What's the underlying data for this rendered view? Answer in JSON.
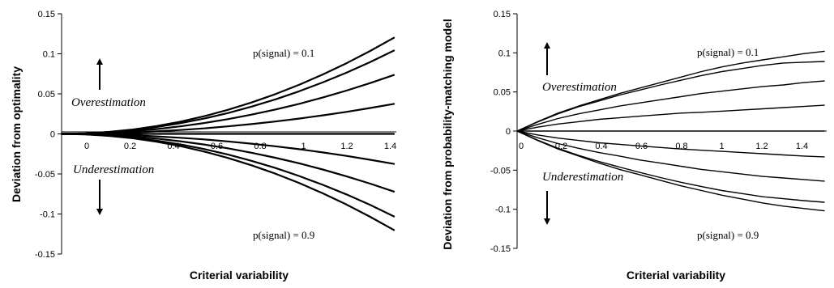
{
  "chart_data": [
    {
      "type": "line",
      "title": "",
      "xlabel": "Criterial variability",
      "ylabel": "Deviation from optimality",
      "xlim": [
        0,
        1.4
      ],
      "ylim": [
        -0.15,
        0.15
      ],
      "x_ticks": [
        "0",
        "0.2",
        "0.4",
        "0.6",
        "0.8",
        "1",
        "1.2",
        "1.4"
      ],
      "y_ticks": [
        "0.15",
        "0.1",
        "0.05",
        "0",
        "-0.05",
        "-0.1",
        "-0.15"
      ],
      "grid": false,
      "annotations": {
        "over": "Overestimation",
        "under": "Underestimation",
        "top_series": "p(signal) = 0.1",
        "bottom_series": "p(signal) = 0.9"
      },
      "x": [
        0,
        0.1,
        0.2,
        0.3,
        0.4,
        0.5,
        0.6,
        0.7,
        0.8,
        0.9,
        1.0,
        1.1,
        1.2,
        1.3,
        1.4
      ],
      "series": [
        {
          "values": [
            0,
            0.0006,
            0.0025,
            0.0055,
            0.0098,
            0.0153,
            0.022,
            0.03,
            0.0392,
            0.0496,
            0.0612,
            0.0741,
            0.0882,
            0.1035,
            0.12
          ]
        },
        {
          "values": [
            0,
            0.0005,
            0.0021,
            0.0048,
            0.0085,
            0.0133,
            0.0191,
            0.026,
            0.034,
            0.043,
            0.0531,
            0.0642,
            0.0764,
            0.0897,
            0.104
          ]
        },
        {
          "values": [
            0,
            0.0004,
            0.0015,
            0.0034,
            0.006,
            0.0094,
            0.0135,
            0.0184,
            0.024,
            0.0304,
            0.0375,
            0.0454,
            0.054,
            0.0634,
            0.0735
          ]
        },
        {
          "values": [
            0,
            0.0002,
            0.0008,
            0.0017,
            0.0031,
            0.0048,
            0.0069,
            0.0094,
            0.0122,
            0.0155,
            0.0191,
            0.0231,
            0.0275,
            0.0323,
            0.0375
          ]
        },
        {
          "values": [
            0,
            0,
            0,
            0,
            0,
            0,
            0,
            0,
            0,
            0,
            0,
            0,
            0,
            0,
            0
          ]
        },
        {
          "values": [
            0,
            -0.0002,
            -0.0008,
            -0.0017,
            -0.0031,
            -0.0048,
            -0.0069,
            -0.0094,
            -0.0122,
            -0.0155,
            -0.0191,
            -0.0231,
            -0.0275,
            -0.0323,
            -0.0375
          ]
        },
        {
          "values": [
            0,
            -0.0004,
            -0.0015,
            -0.0033,
            -0.0059,
            -0.0092,
            -0.0132,
            -0.018,
            -0.0235,
            -0.0298,
            -0.0367,
            -0.0444,
            -0.0529,
            -0.0621,
            -0.072
          ]
        },
        {
          "values": [
            0,
            -0.0005,
            -0.0021,
            -0.0047,
            -0.0084,
            -0.0131,
            -0.0189,
            -0.0257,
            -0.0336,
            -0.0425,
            -0.0525,
            -0.0635,
            -0.0756,
            -0.0887,
            -0.103
          ]
        },
        {
          "values": [
            0,
            -0.0006,
            -0.0025,
            -0.0055,
            -0.0098,
            -0.0153,
            -0.022,
            -0.03,
            -0.0392,
            -0.0496,
            -0.0612,
            -0.0741,
            -0.0882,
            -0.1035,
            -0.12
          ]
        }
      ]
    },
    {
      "type": "line",
      "title": "",
      "xlabel": "Criterial variability",
      "ylabel": "Deviation from probability-matching model",
      "xlim": [
        0,
        1.5
      ],
      "ylim": [
        -0.15,
        0.15
      ],
      "x_ticks": [
        "0",
        "0.2",
        "0.4",
        "0.6",
        "0.8",
        "1",
        "1.2",
        "1.4"
      ],
      "y_ticks": [
        "0.15",
        "0.1",
        "0.05",
        "0",
        "-0.05",
        "-0.1",
        "-0.15"
      ],
      "grid": false,
      "annotations": {
        "over": "Overestimation",
        "under": "Underestimation",
        "top_series": "p(signal) = 0.1",
        "bottom_series": "p(signal) = 0.9"
      },
      "x": [
        0,
        0.1,
        0.2,
        0.3,
        0.4,
        0.5,
        0.6,
        0.7,
        0.8,
        0.9,
        1.0,
        1.1,
        1.2,
        1.3,
        1.4,
        1.5
      ],
      "series": [
        {
          "values": [
            0,
            0.012,
            0.023,
            0.032,
            0.04,
            0.048,
            0.055,
            0.062,
            0.069,
            0.076,
            0.082,
            0.087,
            0.091,
            0.095,
            0.099,
            0.102
          ]
        },
        {
          "values": [
            0,
            0.0115,
            0.022,
            0.031,
            0.0385,
            0.046,
            0.0525,
            0.059,
            0.065,
            0.071,
            0.076,
            0.08,
            0.084,
            0.087,
            0.088,
            0.089
          ]
        },
        {
          "values": [
            0,
            0.0085,
            0.016,
            0.022,
            0.027,
            0.032,
            0.036,
            0.04,
            0.044,
            0.048,
            0.051,
            0.054,
            0.057,
            0.059,
            0.062,
            0.064
          ]
        },
        {
          "values": [
            0,
            0.005,
            0.009,
            0.012,
            0.015,
            0.017,
            0.019,
            0.021,
            0.023,
            0.024,
            0.0255,
            0.027,
            0.0285,
            0.03,
            0.0315,
            0.033
          ]
        },
        {
          "values": [
            0,
            0,
            0,
            0,
            0,
            0,
            0,
            0,
            0,
            0,
            0,
            0,
            0,
            0,
            0,
            0
          ]
        },
        {
          "values": [
            0,
            -0.005,
            -0.009,
            -0.012,
            -0.015,
            -0.017,
            -0.019,
            -0.021,
            -0.023,
            -0.0245,
            -0.026,
            -0.0275,
            -0.029,
            -0.0305,
            -0.032,
            -0.033
          ]
        },
        {
          "values": [
            0,
            -0.0085,
            -0.016,
            -0.022,
            -0.0275,
            -0.032,
            -0.037,
            -0.041,
            -0.045,
            -0.049,
            -0.052,
            -0.055,
            -0.058,
            -0.06,
            -0.062,
            -0.064
          ]
        },
        {
          "values": [
            0,
            -0.0115,
            -0.022,
            -0.031,
            -0.039,
            -0.046,
            -0.053,
            -0.0595,
            -0.0655,
            -0.071,
            -0.076,
            -0.08,
            -0.084,
            -0.0865,
            -0.089,
            -0.091
          ]
        },
        {
          "values": [
            0,
            -0.012,
            -0.023,
            -0.032,
            -0.041,
            -0.049,
            -0.056,
            -0.063,
            -0.07,
            -0.076,
            -0.082,
            -0.087,
            -0.092,
            -0.096,
            -0.099,
            -0.102
          ]
        }
      ]
    }
  ]
}
